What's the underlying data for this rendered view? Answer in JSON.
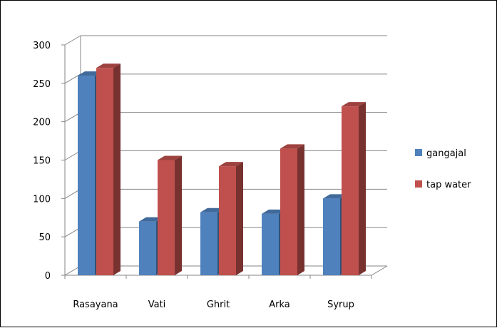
{
  "chart_data": {
    "type": "bar",
    "categories": [
      "Rasayana",
      "Vati",
      "Ghrit",
      "Arka",
      "Syrup"
    ],
    "series": [
      {
        "name": "gangajal",
        "values": [
          260,
          70,
          82,
          80,
          100
        ]
      },
      {
        "name": "tap water",
        "values": [
          270,
          150,
          142,
          165,
          220
        ]
      }
    ],
    "colors": {
      "gangajal": "#4F81BD",
      "tap water": "#C0504D"
    },
    "title": "",
    "xlabel": "",
    "ylabel": "",
    "ylim": [
      0,
      300
    ],
    "yticks": [
      0,
      50,
      100,
      150,
      200,
      250,
      300
    ],
    "grid": true,
    "legend": "right",
    "style": "3d-clustered-column"
  }
}
